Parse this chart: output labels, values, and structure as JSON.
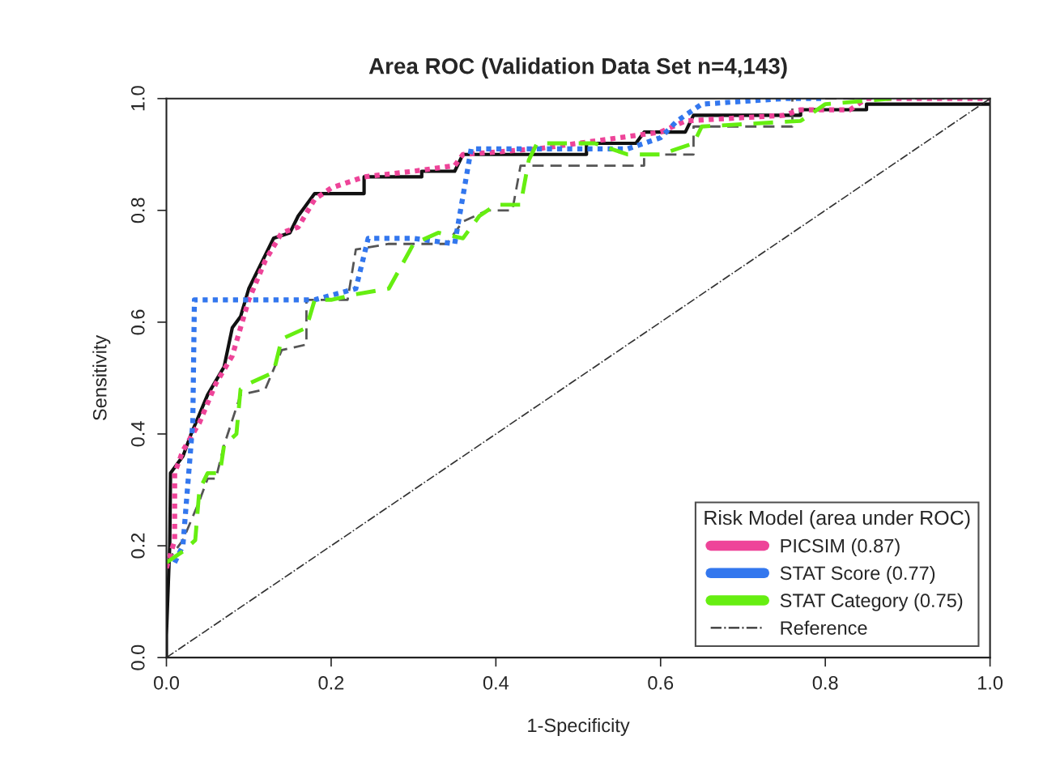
{
  "chart_data": {
    "type": "line",
    "title": "Area ROC (Validation Data Set n=4,143)",
    "xlabel": "1-Specificity",
    "ylabel": "Sensitivity",
    "legend_title": "Risk Model (area under ROC)",
    "legend": "bottom right",
    "grid": false,
    "xlim": [
      0,
      1
    ],
    "ylim": [
      0,
      1
    ],
    "xticks": [
      {
        "value": 0,
        "label": "0.0"
      },
      0.2,
      0.4,
      0.6,
      0.8,
      {
        "value": 1,
        "label": "1.0"
      }
    ],
    "yticks": [
      {
        "value": 0,
        "label": "0.0"
      },
      0.2,
      0.4,
      0.6,
      0.8,
      {
        "value": 1,
        "label": "1.0"
      }
    ],
    "series": [
      {
        "color": "#111111",
        "line_style": "solid",
        "x": [
          0,
          0,
          0.004,
          0.005,
          0.02,
          0.03,
          0.05,
          0.07,
          0.08,
          0.09,
          0.1,
          0.12,
          0.13,
          0.15,
          0.16,
          0.18,
          0.24,
          0.24,
          0.31,
          0.31,
          0.35,
          0.36,
          0.51,
          0.51,
          0.57,
          0.58,
          0.63,
          0.64,
          0.77,
          0.77,
          0.85,
          0.85,
          1
        ],
        "values": [
          0,
          0.04,
          0.2,
          0.33,
          0.36,
          0.4,
          0.47,
          0.52,
          0.59,
          0.61,
          0.66,
          0.72,
          0.75,
          0.76,
          0.79,
          0.83,
          0.83,
          0.86,
          0.86,
          0.87,
          0.87,
          0.9,
          0.9,
          0.92,
          0.92,
          0.94,
          0.94,
          0.97,
          0.97,
          0.98,
          0.98,
          0.99,
          0.99
        ]
      },
      {
        "color": "#555555",
        "line_style": "dashed",
        "x": [
          0,
          0.02,
          0.04,
          0.05,
          0.06,
          0.07,
          0.09,
          0.12,
          0.14,
          0.17,
          0.17,
          0.22,
          0.23,
          0.27,
          0.34,
          0.36,
          0.39,
          0.42,
          0.43,
          0.58,
          0.58,
          0.64,
          0.64,
          0.76,
          0.76,
          1
        ],
        "values": [
          0.17,
          0.21,
          0.28,
          0.32,
          0.32,
          0.38,
          0.47,
          0.48,
          0.55,
          0.56,
          0.64,
          0.64,
          0.73,
          0.74,
          0.74,
          0.78,
          0.8,
          0.8,
          0.88,
          0.88,
          0.9,
          0.9,
          0.95,
          0.95,
          1,
          1
        ]
      },
      {
        "name": "PICSIM (0.87)",
        "color": "#ee4499",
        "line_style": "dotted",
        "x": [
          0,
          0.01,
          0.01,
          0.02,
          0.04,
          0.06,
          0.08,
          0.1,
          0.12,
          0.14,
          0.16,
          0.18,
          0.2,
          0.24,
          0.3,
          0.35,
          0.36,
          0.45,
          0.5,
          0.55,
          0.6,
          0.63,
          0.75,
          0.77,
          0.83,
          0.85,
          1
        ],
        "values": [
          0.16,
          0.21,
          0.33,
          0.37,
          0.42,
          0.49,
          0.54,
          0.64,
          0.71,
          0.76,
          0.77,
          0.82,
          0.84,
          0.86,
          0.87,
          0.88,
          0.9,
          0.91,
          0.92,
          0.93,
          0.94,
          0.96,
          0.97,
          0.98,
          0.98,
          1,
          1
        ]
      },
      {
        "name": "STAT Score (0.77)",
        "color": "#3377ee",
        "line_style": "dotted",
        "x": [
          0.01,
          0.02,
          0.032,
          0.034,
          0.1,
          0.18,
          0.23,
          0.245,
          0.3,
          0.35,
          0.37,
          0.45,
          0.56,
          0.6,
          0.62,
          0.65,
          0.75,
          0.8
        ],
        "values": [
          0.17,
          0.2,
          0.42,
          0.64,
          0.64,
          0.64,
          0.66,
          0.75,
          0.75,
          0.74,
          0.91,
          0.91,
          0.91,
          0.93,
          0.96,
          0.99,
          1,
          1
        ]
      },
      {
        "name": "STAT Category (0.75)",
        "color": "#66ee11",
        "line_style": "dashed",
        "x": [
          0,
          0.02,
          0.035,
          0.04,
          0.05,
          0.065,
          0.07,
          0.085,
          0.09,
          0.1,
          0.13,
          0.14,
          0.17,
          0.18,
          0.2,
          0.23,
          0.27,
          0.3,
          0.33,
          0.36,
          0.38,
          0.4,
          0.43,
          0.44,
          0.45,
          0.52,
          0.56,
          0.6,
          0.64,
          0.65,
          0.77,
          0.8,
          0.88
        ],
        "values": [
          0.17,
          0.19,
          0.21,
          0.3,
          0.33,
          0.33,
          0.38,
          0.4,
          0.48,
          0.49,
          0.51,
          0.57,
          0.59,
          0.64,
          0.64,
          0.65,
          0.66,
          0.74,
          0.76,
          0.75,
          0.79,
          0.81,
          0.81,
          0.89,
          0.92,
          0.92,
          0.9,
          0.9,
          0.92,
          0.95,
          0.96,
          0.99,
          1
        ]
      },
      {
        "name": "Reference",
        "color": "#333333",
        "line_style": "dashdot",
        "x": [
          0,
          1
        ],
        "values": [
          0,
          1
        ]
      }
    ]
  }
}
